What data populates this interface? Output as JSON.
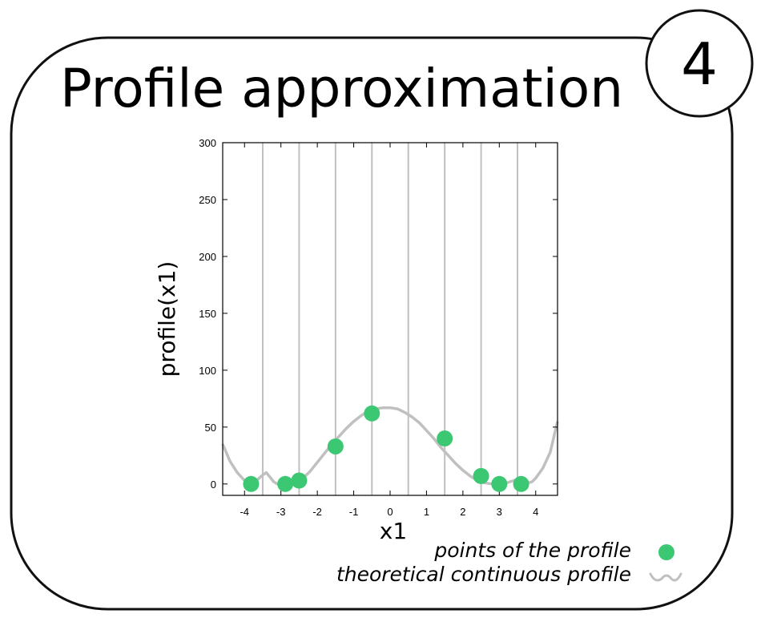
{
  "title": "Profile approximation",
  "badge": "4",
  "chart_data": {
    "type": "scatter",
    "xlabel": "x1",
    "ylabel": "profile(x1)",
    "xlim": [
      -4.6,
      4.6
    ],
    "ylim": [
      -10,
      300
    ],
    "xticks": [
      -4,
      -3,
      -2,
      -1,
      0,
      1,
      2,
      3,
      4
    ],
    "yticks": [
      0,
      50,
      100,
      150,
      200,
      250,
      300
    ],
    "grid_x": [
      -3.5,
      -2.5,
      -1.5,
      -0.5,
      0.5,
      1.5,
      2.5,
      3.5
    ],
    "series": [
      {
        "name": "points of the profile",
        "kind": "points",
        "color": "#3cc872",
        "x": [
          -3.82,
          -2.88,
          -2.5,
          -1.5,
          -0.5,
          1.5,
          2.5,
          3.0,
          3.6
        ],
        "y": [
          0,
          0,
          3,
          33,
          62,
          40,
          7,
          0,
          0
        ]
      },
      {
        "name": "theoretical continuous profile",
        "kind": "line",
        "color": "#c0c0c0",
        "x": [
          -4.6,
          -4.4,
          -4.2,
          -4.0,
          -3.9,
          -3.8,
          -3.7,
          -3.6,
          -3.5,
          -3.4,
          -3.3,
          -3.2,
          -3.1,
          -3.0,
          -2.9,
          -2.8,
          -2.7,
          -2.6,
          -2.5,
          -2.4,
          -2.2,
          -2.0,
          -1.8,
          -1.6,
          -1.4,
          -1.2,
          -1.0,
          -0.8,
          -0.6,
          -0.4,
          -0.2,
          0.0,
          0.2,
          0.4,
          0.6,
          0.8,
          1.0,
          1.2,
          1.4,
          1.6,
          1.8,
          2.0,
          2.2,
          2.4,
          2.6,
          2.8,
          3.0,
          3.2,
          3.4,
          3.5,
          3.6,
          3.7,
          3.8,
          3.9,
          4.0,
          4.2,
          4.4,
          4.6
        ],
        "y": [
          35,
          20,
          10,
          3,
          1,
          0,
          2,
          5,
          8,
          10,
          6,
          2,
          0,
          0,
          0,
          0,
          1,
          2,
          3,
          5,
          11,
          19,
          27,
          35,
          42,
          49,
          55,
          60,
          64,
          66,
          67,
          67,
          66,
          63,
          59,
          54,
          47,
          40,
          32,
          25,
          18,
          12,
          7,
          3,
          1,
          0,
          0,
          1,
          3,
          4,
          3,
          2,
          1,
          2,
          5,
          14,
          28,
          55
        ]
      }
    ],
    "legend": "bottom-right"
  }
}
